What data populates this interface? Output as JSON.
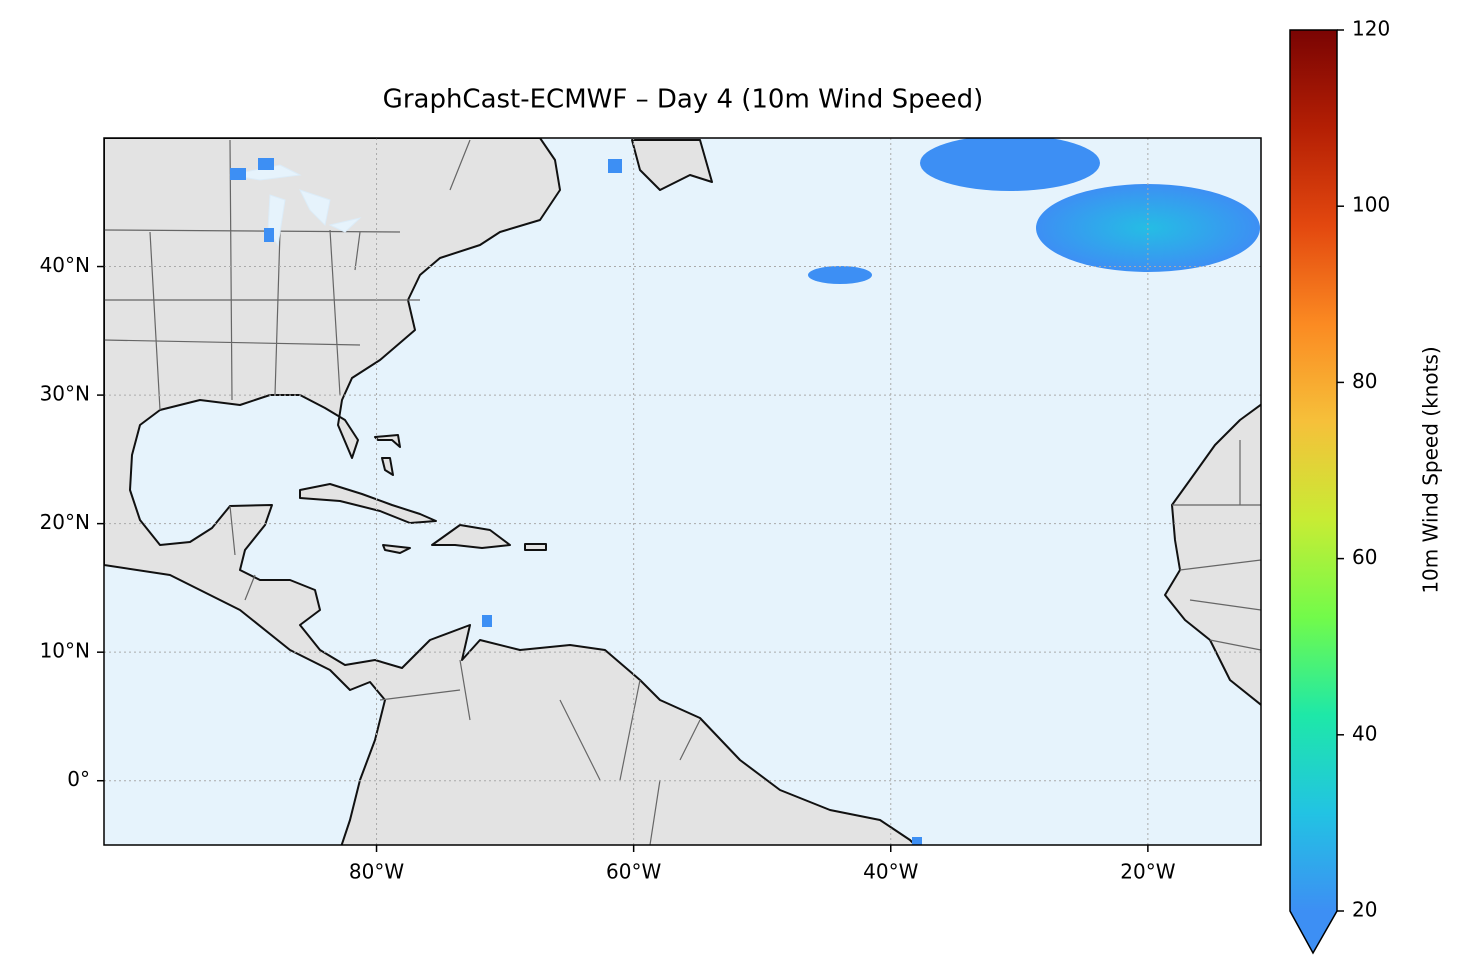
{
  "chart_data": {
    "type": "map",
    "title": "GraphCast-ECMWF – Day 4 (10m Wind Speed)",
    "xlim": [
      -101.2,
      -11.2
    ],
    "ylim": [
      -5,
      50
    ],
    "xticks": [
      {
        "value": -80,
        "label": "80°W"
      },
      {
        "value": -60,
        "label": "60°W"
      },
      {
        "value": -40,
        "label": "40°W"
      },
      {
        "value": -20,
        "label": "20°W"
      }
    ],
    "yticks": [
      {
        "value": 0,
        "label": "0°"
      },
      {
        "value": 10,
        "label": "10°N"
      },
      {
        "value": 20,
        "label": "20°N"
      },
      {
        "value": 30,
        "label": "30°N"
      },
      {
        "value": 40,
        "label": "40°N"
      }
    ],
    "grid": true,
    "ocean_color": "#e6f3fc",
    "colorbar": {
      "label": "10m Wind Speed (knots)",
      "lim": [
        20,
        120
      ],
      "ticks": [
        20,
        40,
        60,
        80,
        100,
        120
      ],
      "extend": "min",
      "colors": [
        "#3d8ff4",
        "#22c3e3",
        "#1ee8a8",
        "#72fb4a",
        "#c8ec34",
        "#f6c03a",
        "#fb8a22",
        "#e3480f",
        "#b41f04",
        "#7a0403"
      ]
    }
  }
}
